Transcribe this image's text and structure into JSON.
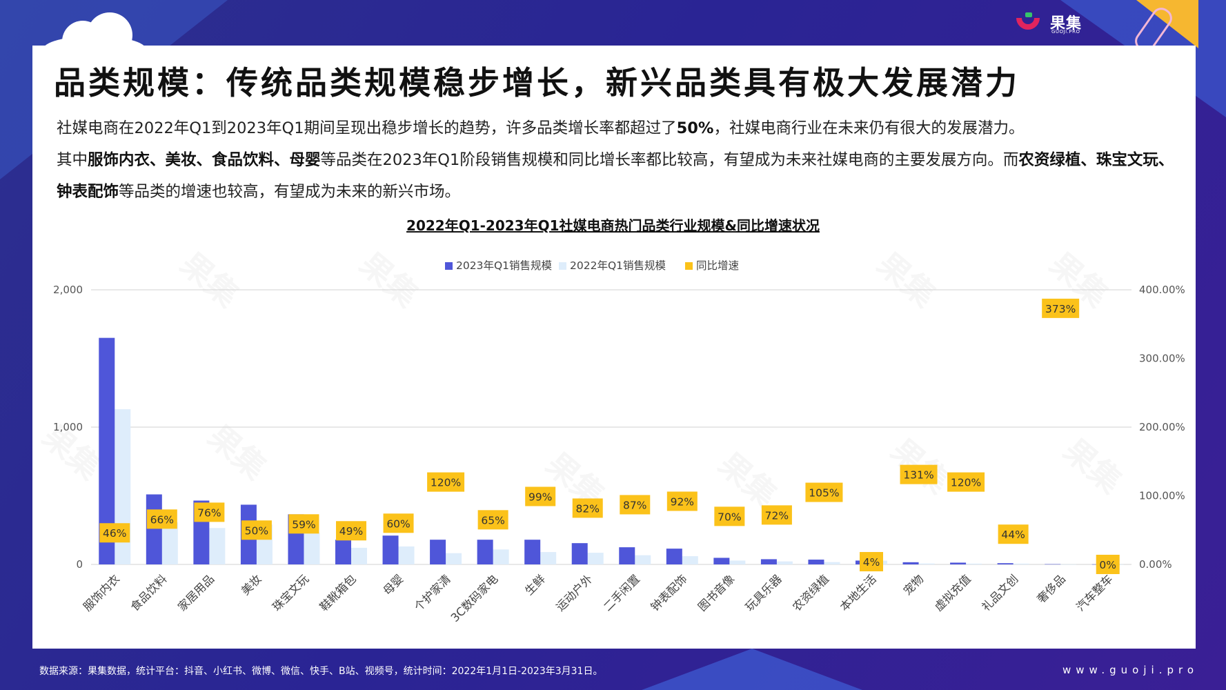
{
  "header": {
    "logo_text": "果集",
    "logo_sub": "GUOJI.PRO"
  },
  "title": "品类规模：传统品类规模稳步增长，新兴品类具有极大发展潜力",
  "paragraph": {
    "l1_a": "社媒电商在2022年Q1到2023年Q1期间呈现出稳步增长的趋势，许多品类增长率都超过了",
    "l1_b": "50%",
    "l1_c": "，社媒电商行业在未来仍有很大的发展潜力。",
    "l2_a": "其中",
    "l2_b": "服饰内衣、美妆、食品饮料、母婴",
    "l2_c": "等品类在2023年Q1阶段销售规模和同比增长率都比较高，有望成为未来社媒电商的主要发展方向。而",
    "l2_d": "农资绿植、珠宝文玩、钟表配饰",
    "l2_e": "等品类的增速也较高，有望成为未来的新兴市场。"
  },
  "chart_data": {
    "type": "bar",
    "title": "2022年Q1-2023年Q1社媒电商热门品类行业规模&同比增速状况",
    "legend": [
      "2023年Q1销售规模",
      "2022年Q1销售规模",
      "同比增速"
    ],
    "legend_position": "top-center",
    "categories": [
      "服饰内衣",
      "食品饮料",
      "家居用品",
      "美妆",
      "珠宝文玩",
      "鞋靴箱包",
      "母婴",
      "个护家清",
      "3C数码家电",
      "生鲜",
      "运动户外",
      "二手闲置",
      "钟表配饰",
      "图书音像",
      "玩具乐器",
      "农资绿植",
      "本地生活",
      "宠物",
      "虚拟充值",
      "礼品文创",
      "奢侈品",
      "汽车整车"
    ],
    "series": [
      {
        "name": "2023年Q1销售规模",
        "values": [
          1650,
          510,
          465,
          435,
          365,
          180,
          210,
          180,
          180,
          180,
          155,
          125,
          115,
          48,
          38,
          35,
          28,
          16,
          13,
          9,
          2,
          1
        ]
      },
      {
        "name": "2022年Q1销售规模",
        "values": [
          1130,
          307,
          265,
          290,
          230,
          121,
          131,
          82,
          109,
          90,
          85,
          67,
          60,
          28,
          22,
          17,
          27,
          7,
          6,
          6,
          1,
          1
        ]
      },
      {
        "name": "同比增速",
        "values": [
          46,
          66,
          76,
          50,
          59,
          49,
          60,
          120,
          65,
          99,
          82,
          87,
          92,
          70,
          72,
          105,
          4,
          131,
          120,
          44,
          373,
          0
        ]
      }
    ],
    "growth_labels": [
      "46%",
      "66%",
      "76%",
      "50%",
      "59%",
      "49%",
      "60%",
      "120%",
      "65%",
      "99%",
      "82%",
      "87%",
      "92%",
      "70%",
      "72%",
      "105%",
      "4%",
      "131%",
      "120%",
      "44%",
      "373%",
      "0%"
    ],
    "left_axis": {
      "ylim": [
        0,
        2000
      ],
      "ticks": [
        "0",
        "1,000",
        "2,000"
      ]
    },
    "right_axis": {
      "ylim": [
        0,
        400
      ],
      "ticks": [
        "0.00%",
        "100.00%",
        "200.00%",
        "300.00%",
        "400.00%"
      ]
    },
    "grid": true
  },
  "colors": {
    "bar2023": "#4f56d9",
    "bar2022": "#deedfb",
    "growth": "#fbc21a",
    "grid": "#d9d9d9"
  },
  "footer": {
    "source": "数据来源：果集数据，统计平台：抖音、小红书、微博、微信、快手、B站、视频号，统计时间：2022年1月1日-2023年3月31日。",
    "website": "www.guoji.pro"
  }
}
